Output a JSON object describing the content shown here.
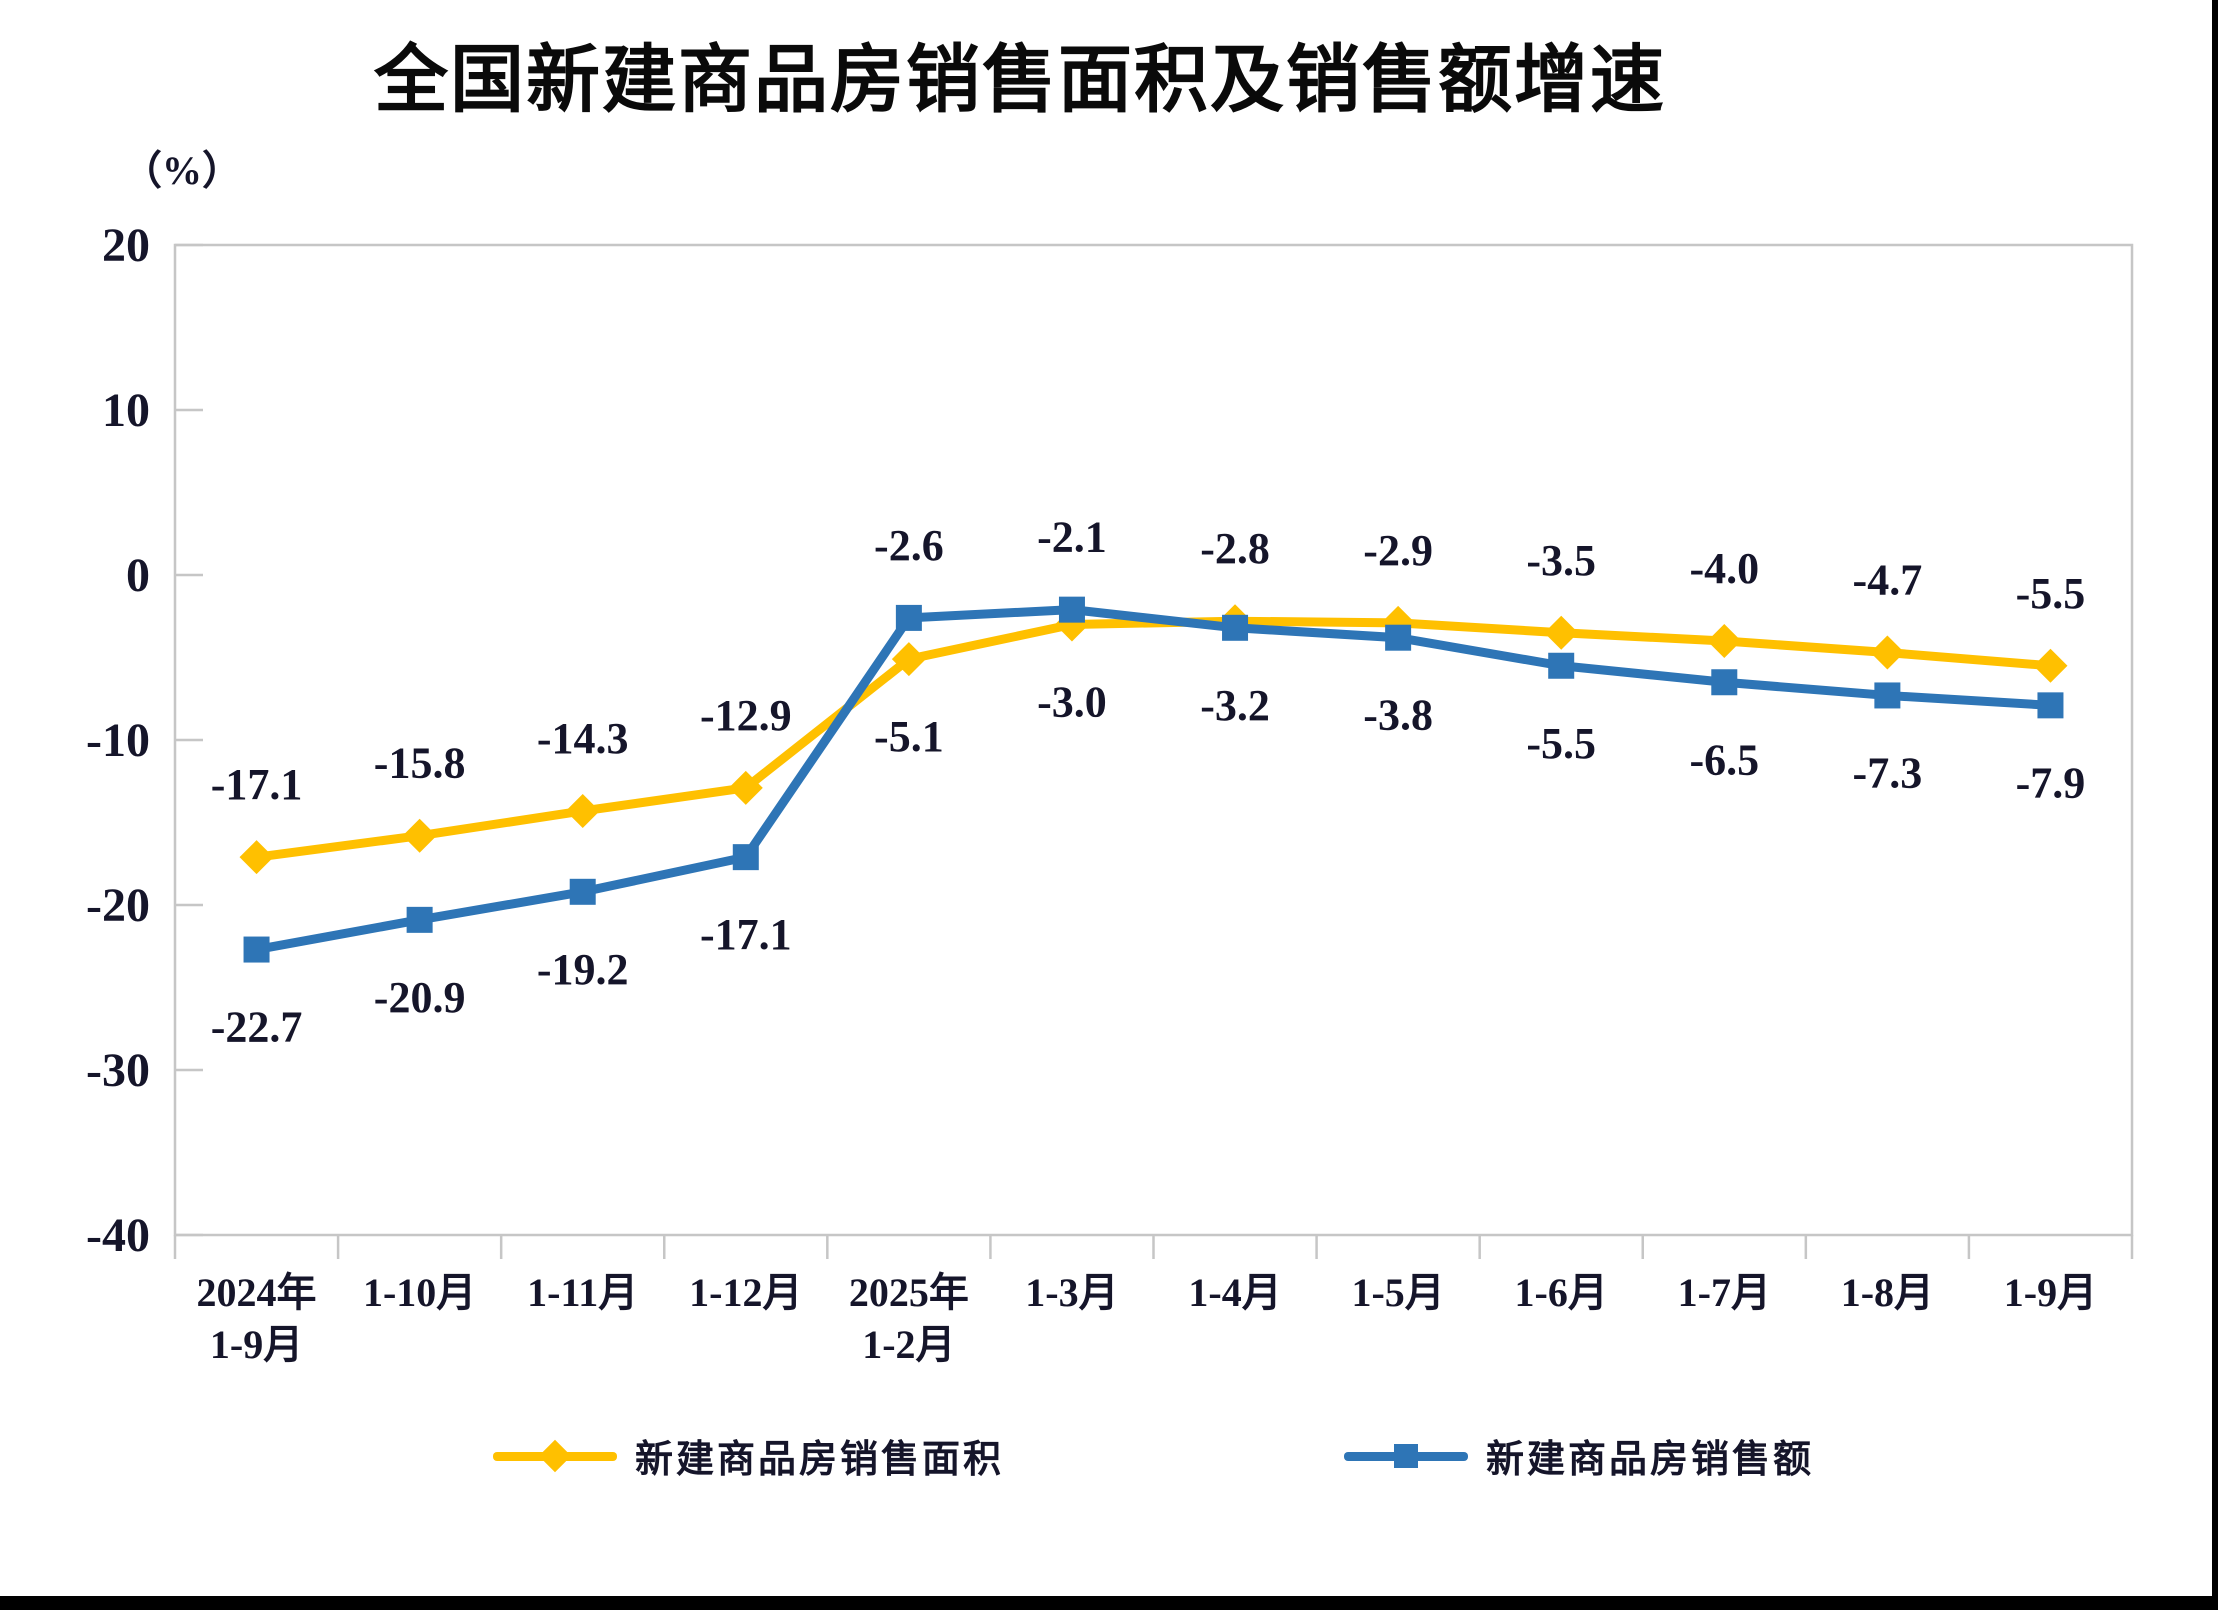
{
  "chart_data": {
    "type": "line",
    "title": "全国新建商品房销售面积及销售额增速",
    "unit": "（%）",
    "categories": [
      "2024年\n1-9月",
      "1-10月",
      "1-11月",
      "1-12月",
      "2025年\n1-2月",
      "1-3月",
      "1-4月",
      "1-5月",
      "1-6月",
      "1-7月",
      "1-8月",
      "1-9月"
    ],
    "series": [
      {
        "name": "新建商品房销售面积",
        "color": "#FFC000",
        "marker": "diamond",
        "values": [
          -17.1,
          -15.8,
          -14.3,
          -12.9,
          -5.1,
          -3.0,
          -2.8,
          -2.9,
          -3.5,
          -4.0,
          -4.7,
          -5.5
        ]
      },
      {
        "name": "新建商品房销售额",
        "color": "#2E75B6",
        "marker": "square",
        "values": [
          -22.7,
          -20.9,
          -19.2,
          -17.1,
          -2.6,
          -2.1,
          -3.2,
          -3.8,
          -5.5,
          -6.5,
          -7.3,
          -7.9
        ]
      }
    ],
    "ylim": [
      -40,
      20
    ],
    "yticks": [
      20,
      10,
      0,
      -10,
      -20,
      -30,
      -40
    ],
    "grid": false,
    "legend_position": "bottom",
    "axis_color": "#C6C6C6",
    "label_color": "#15152A"
  }
}
